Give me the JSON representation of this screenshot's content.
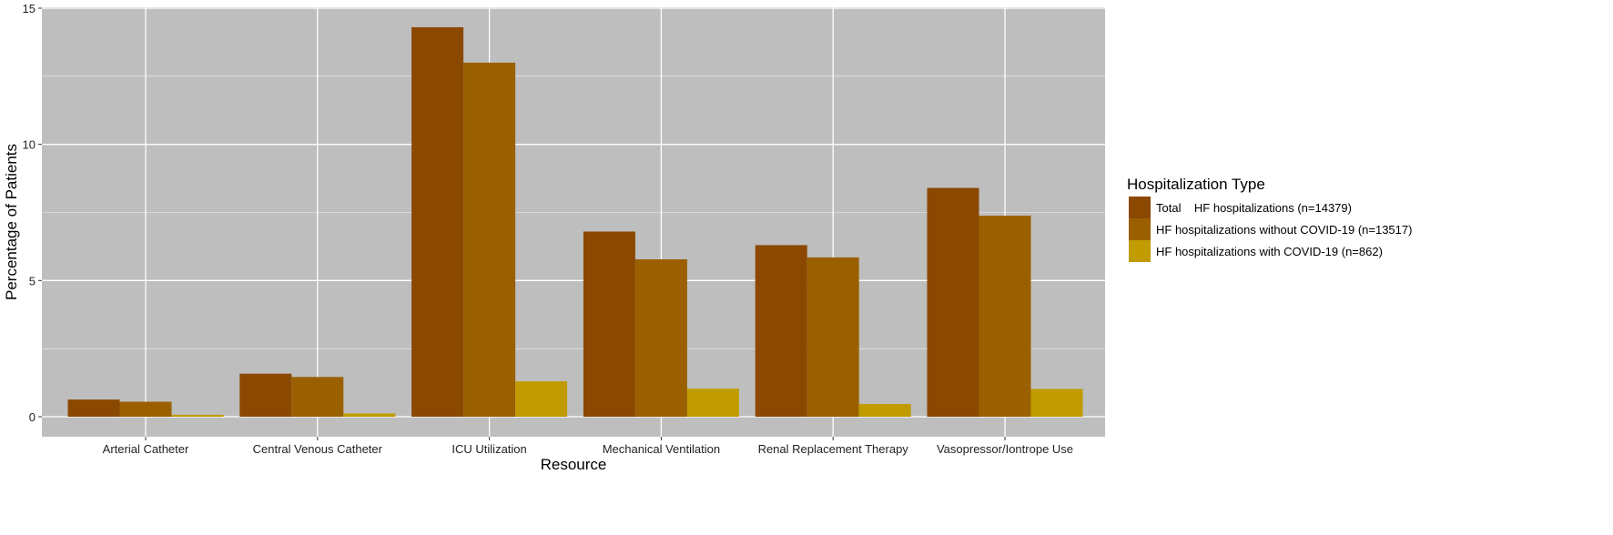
{
  "chart_data": {
    "type": "bar",
    "title": "",
    "xlabel": "Resource",
    "ylabel": "Percentage of Patients",
    "ylim": [
      0,
      15
    ],
    "yticks": [
      "0",
      "5",
      "10",
      "15"
    ],
    "grid": true,
    "legend_position": "right",
    "legend_title": "Hospitalization Type",
    "categories": [
      "Arterial Catheter",
      "Central Venous Catheter",
      "ICU Utilization",
      "Mechanical Ventilation",
      "Renal Replacement Therapy",
      "Vasopressor/Iontrope Use"
    ],
    "series": [
      {
        "name": "Total    HF hospitalizations (n=14379)",
        "color": "#8b4800",
        "values": [
          0.63,
          1.58,
          14.3,
          6.8,
          6.3,
          8.4
        ]
      },
      {
        "name": "HF hospitalizations without COVID-19 (n=13517)",
        "color": "#9a6000",
        "values": [
          0.55,
          1.46,
          13.0,
          5.78,
          5.85,
          7.38
        ]
      },
      {
        "name": "HF hospitalizations with COVID-19 (n=862)",
        "color": "#c09c00",
        "values": [
          0.07,
          0.12,
          1.3,
          1.03,
          0.47,
          1.02
        ]
      }
    ],
    "panel_background": "#bebebe",
    "grid_color": "#ffffff"
  }
}
